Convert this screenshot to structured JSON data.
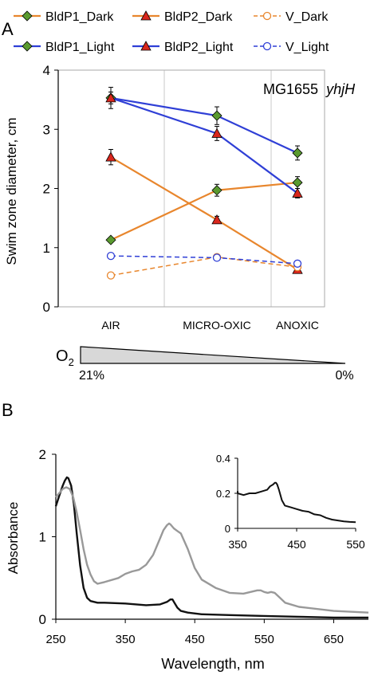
{
  "panel_a": {
    "letter": "A",
    "o2_label": "O",
    "o2_subscript": "2",
    "o2_high": "21%",
    "o2_low": "0%"
  },
  "panel_b": {
    "letter": "B"
  },
  "chart_data": [
    {
      "id": "panel-a",
      "type": "line",
      "title": "",
      "annotation_text": "MG1655",
      "annotation_italic": "yhjH",
      "xlabel": "",
      "ylabel": "Swim zone diameter, cm",
      "categories": [
        "AIR",
        "MICRO-OXIC",
        "ANOXIC"
      ],
      "ylim": [
        0,
        4
      ],
      "yticks": [
        0,
        1,
        2,
        3,
        4
      ],
      "grid": "vertical separators only",
      "legend_position": "top",
      "series": [
        {
          "name": "BldP1_Dark",
          "color": "#e8862d",
          "marker": "diamond",
          "marker_color": "#5a9a2f",
          "dashed": false,
          "values": [
            1.13,
            1.97,
            2.1
          ],
          "errors": [
            0.04,
            0.1,
            0.1
          ]
        },
        {
          "name": "BldP2_Dark",
          "color": "#e8862d",
          "marker": "triangle",
          "marker_color": "#d9261c",
          "dashed": false,
          "values": [
            2.53,
            1.47,
            0.63
          ],
          "errors": [
            0.13,
            0.06,
            0.04
          ]
        },
        {
          "name": "V_Dark",
          "color": "#e8862d",
          "marker": "circle-open",
          "marker_color": "#e8862d",
          "dashed": true,
          "values": [
            0.53,
            0.84,
            0.67
          ],
          "errors": [
            0.04,
            0.02,
            0.03
          ]
        },
        {
          "name": "BldP1_Light",
          "color": "#2f3fd6",
          "marker": "diamond",
          "marker_color": "#5a9a2f",
          "dashed": false,
          "values": [
            3.53,
            3.23,
            2.6
          ],
          "errors": [
            0.18,
            0.15,
            0.12
          ]
        },
        {
          "name": "BldP2_Light",
          "color": "#2f3fd6",
          "marker": "triangle",
          "marker_color": "#d9261c",
          "dashed": false,
          "values": [
            3.53,
            2.93,
            1.92
          ],
          "errors": [
            0.1,
            0.12,
            0.08
          ]
        },
        {
          "name": "V_Light",
          "color": "#2f3fd6",
          "marker": "circle-open",
          "marker_color": "#2f3fd6",
          "dashed": true,
          "values": [
            0.86,
            0.83,
            0.73
          ],
          "errors": [
            0.02,
            0.02,
            0.02
          ]
        }
      ]
    },
    {
      "id": "panel-b-main",
      "type": "line",
      "title": "",
      "xlabel": "Wavelength, nm",
      "ylabel": "Absorbance",
      "xlim": [
        250,
        700
      ],
      "ylim": [
        0,
        2
      ],
      "xticks": [
        250,
        350,
        450,
        550,
        650
      ],
      "yticks": [
        0,
        1,
        2
      ],
      "grid": false,
      "series": [
        {
          "color": "#111111",
          "x": [
            250,
            255,
            260,
            263,
            266,
            268,
            272,
            276,
            280,
            285,
            290,
            295,
            300,
            310,
            320,
            350,
            380,
            400,
            410,
            415,
            418,
            420,
            425,
            430,
            440,
            460,
            500,
            550,
            600,
            650,
            700
          ],
          "y": [
            1.37,
            1.5,
            1.62,
            1.68,
            1.72,
            1.71,
            1.62,
            1.4,
            1.05,
            0.65,
            0.38,
            0.26,
            0.22,
            0.2,
            0.2,
            0.19,
            0.17,
            0.18,
            0.21,
            0.24,
            0.24,
            0.21,
            0.14,
            0.1,
            0.08,
            0.06,
            0.05,
            0.04,
            0.03,
            0.02,
            0.02
          ]
        },
        {
          "color": "#999999",
          "x": [
            250,
            255,
            260,
            265,
            270,
            275,
            280,
            285,
            290,
            295,
            300,
            305,
            310,
            320,
            340,
            350,
            360,
            370,
            380,
            390,
            400,
            405,
            410,
            413,
            415,
            420,
            425,
            430,
            440,
            450,
            460,
            480,
            500,
            520,
            540,
            545,
            550,
            555,
            560,
            565,
            570,
            580,
            600,
            650,
            700
          ],
          "y": [
            1.48,
            1.53,
            1.58,
            1.6,
            1.58,
            1.48,
            1.3,
            1.08,
            0.85,
            0.66,
            0.54,
            0.46,
            0.43,
            0.45,
            0.5,
            0.55,
            0.58,
            0.6,
            0.66,
            0.78,
            0.98,
            1.08,
            1.14,
            1.16,
            1.15,
            1.1,
            1.07,
            1.04,
            0.85,
            0.62,
            0.48,
            0.38,
            0.32,
            0.31,
            0.35,
            0.35,
            0.33,
            0.32,
            0.33,
            0.32,
            0.28,
            0.2,
            0.15,
            0.1,
            0.08
          ]
        }
      ]
    },
    {
      "id": "panel-b-inset",
      "type": "line",
      "title": "",
      "xlabel": "",
      "ylabel": "",
      "xlim": [
        350,
        550
      ],
      "ylim": [
        0,
        0.4
      ],
      "xticks": [
        350,
        450,
        550
      ],
      "yticks": [
        0,
        0.2,
        0.4
      ],
      "grid": false,
      "series": [
        {
          "color": "#111111",
          "x": [
            335,
            340,
            350,
            360,
            370,
            380,
            390,
            400,
            405,
            410,
            413,
            415,
            417,
            420,
            425,
            430,
            440,
            450,
            460,
            470,
            480,
            490,
            500,
            510,
            520,
            530,
            540,
            550
          ],
          "y": [
            0.2,
            0.21,
            0.2,
            0.19,
            0.2,
            0.2,
            0.21,
            0.22,
            0.24,
            0.25,
            0.26,
            0.26,
            0.25,
            0.22,
            0.16,
            0.13,
            0.12,
            0.11,
            0.1,
            0.095,
            0.08,
            0.075,
            0.06,
            0.05,
            0.045,
            0.04,
            0.037,
            0.035
          ]
        }
      ]
    }
  ]
}
